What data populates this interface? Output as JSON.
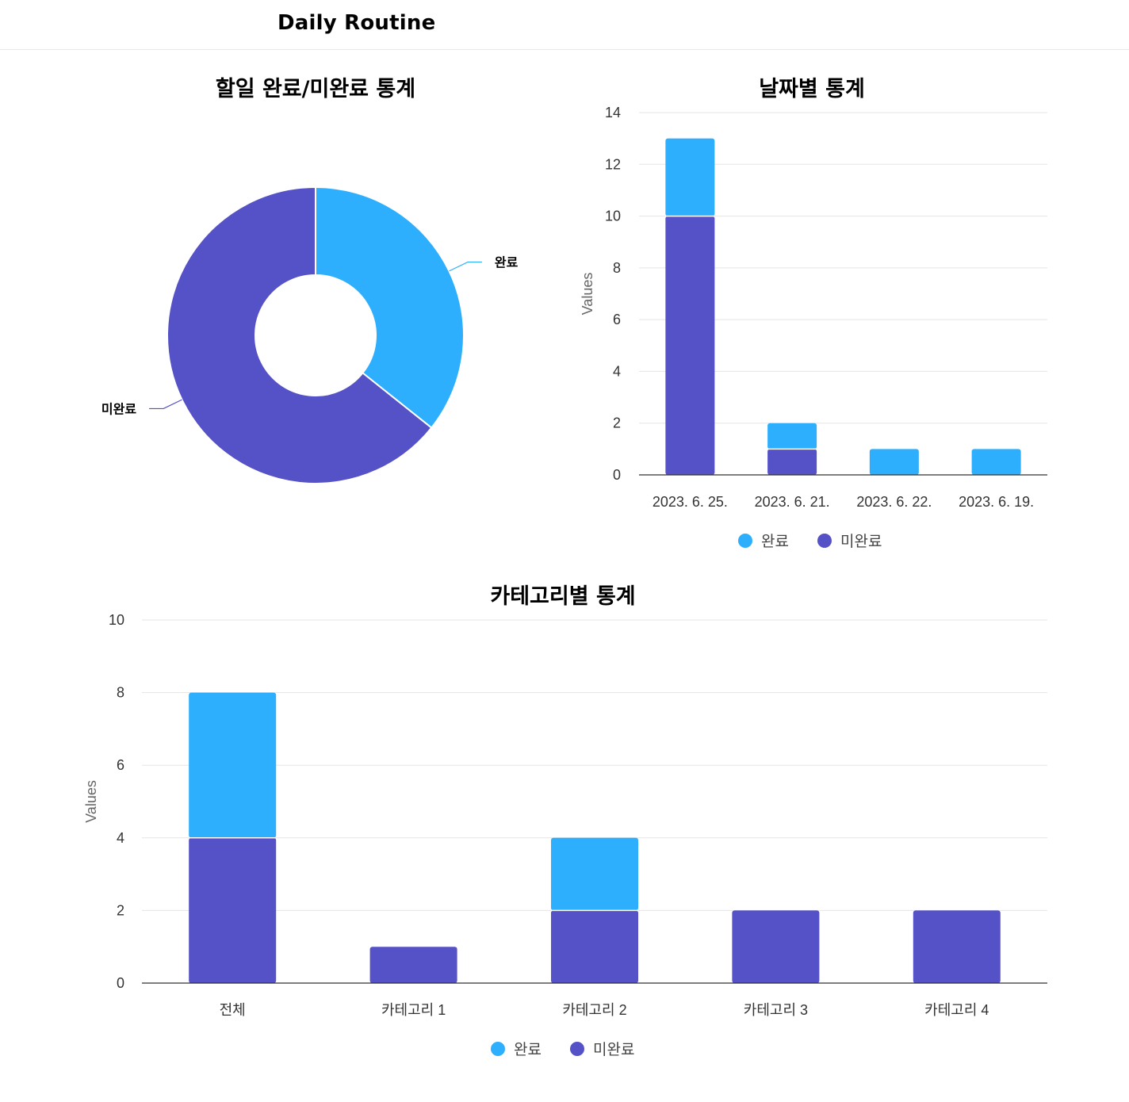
{
  "header": {
    "title": "Daily Routine"
  },
  "colors": {
    "done": "#2eaffd",
    "undone": "#5551c6",
    "grid": "#e5e5e5",
    "axis": "#333333",
    "tick": "#333333"
  },
  "chart_data": [
    {
      "id": "completion",
      "type": "pie",
      "title": "할일 완료/미완료 통계",
      "labels": [
        "완료",
        "미완료"
      ],
      "values": [
        5,
        9
      ],
      "donut": true
    },
    {
      "id": "by-date",
      "type": "bar",
      "stacked": true,
      "title": "날짜별 통계",
      "categories": [
        "2023. 6. 25.",
        "2023. 6. 21.",
        "2023. 6. 22.",
        "2023. 6. 19."
      ],
      "series": [
        {
          "name": "미완료",
          "values": [
            10,
            1,
            0,
            0
          ]
        },
        {
          "name": "완료",
          "values": [
            3,
            1,
            1,
            1
          ]
        }
      ],
      "ylabel": "Values",
      "ylim": [
        0,
        14
      ],
      "yticks": [
        0,
        2,
        4,
        6,
        8,
        10,
        12,
        14
      ],
      "legend": [
        "완료",
        "미완료"
      ],
      "legend_position": "bottom",
      "grid": true
    },
    {
      "id": "by-category",
      "type": "bar",
      "stacked": true,
      "title": "카테고리별 통계",
      "categories": [
        "전체",
        "카테고리 1",
        "카테고리 2",
        "카테고리 3",
        "카테고리 4"
      ],
      "series": [
        {
          "name": "미완료",
          "values": [
            4,
            1,
            2,
            2,
            2
          ]
        },
        {
          "name": "완료",
          "values": [
            4,
            0,
            2,
            0,
            0
          ]
        }
      ],
      "ylabel": "Values",
      "ylim": [
        0,
        10
      ],
      "yticks": [
        0,
        2,
        4,
        6,
        8,
        10
      ],
      "legend": [
        "완료",
        "미완료"
      ],
      "legend_position": "bottom",
      "grid": true
    }
  ]
}
